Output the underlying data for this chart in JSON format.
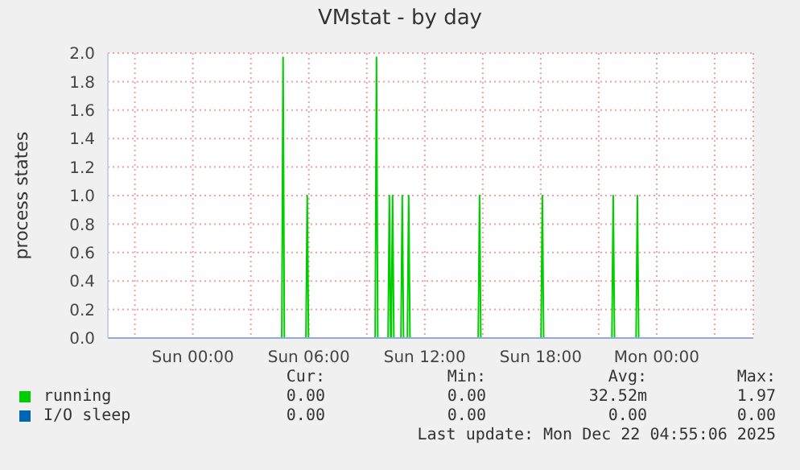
{
  "chart_data": {
    "type": "line",
    "title": "VMstat - by day",
    "ylabel": "process states",
    "xlim": [
      "2025-12-20T19:36",
      "2025-12-22T05:00"
    ],
    "xticks": [
      {
        "value": "2025-12-20T21:00",
        "label": null
      },
      {
        "value": "2025-12-21T00:00",
        "label": "Sun 00:00"
      },
      {
        "value": "2025-12-21T03:00",
        "label": null
      },
      {
        "value": "2025-12-21T06:00",
        "label": "Sun 06:00"
      },
      {
        "value": "2025-12-21T09:00",
        "label": null
      },
      {
        "value": "2025-12-21T12:00",
        "label": "Sun 12:00"
      },
      {
        "value": "2025-12-21T15:00",
        "label": null
      },
      {
        "value": "2025-12-21T18:00",
        "label": "Sun 18:00"
      },
      {
        "value": "2025-12-21T21:00",
        "label": null
      },
      {
        "value": "2025-12-22T00:00",
        "label": "Mon 00:00"
      },
      {
        "value": "2025-12-22T03:00",
        "label": null
      }
    ],
    "ylim": [
      0,
      2
    ],
    "yticks": [
      {
        "value": 0,
        "label": "0.0"
      },
      {
        "value": 0.2,
        "label": "0.2"
      },
      {
        "value": 0.4,
        "label": "0.4"
      },
      {
        "value": 0.6,
        "label": "0.6"
      },
      {
        "value": 0.8,
        "label": "0.8"
      },
      {
        "value": 1,
        "label": "1.0"
      },
      {
        "value": 1.2,
        "label": "1.2"
      },
      {
        "value": 1.4,
        "label": "1.4"
      },
      {
        "value": 1.6,
        "label": "1.6"
      },
      {
        "value": 1.8,
        "label": "1.8"
      },
      {
        "value": 2,
        "label": "2.0"
      }
    ],
    "grid": true,
    "legend": "bottom",
    "marker": "none",
    "line_style": "solid",
    "series": [
      {
        "name": "running",
        "color": "#00cc00",
        "x": [
          "2025-12-20T19:36",
          "2025-12-21T04:36",
          "2025-12-21T04:40",
          "2025-12-21T04:44",
          "2025-12-21T05:51",
          "2025-12-21T05:55",
          "2025-12-21T05:59",
          "2025-12-21T09:26",
          "2025-12-21T09:30",
          "2025-12-21T09:34",
          "2025-12-21T10:06",
          "2025-12-21T10:10",
          "2025-12-21T10:14",
          "2025-12-21T10:16",
          "2025-12-21T10:20",
          "2025-12-21T10:24",
          "2025-12-21T10:46",
          "2025-12-21T10:50",
          "2025-12-21T10:54",
          "2025-12-21T11:06",
          "2025-12-21T11:10",
          "2025-12-21T11:14",
          "2025-12-21T14:46",
          "2025-12-21T14:50",
          "2025-12-21T14:54",
          "2025-12-21T18:01",
          "2025-12-21T18:05",
          "2025-12-21T18:09",
          "2025-12-21T21:41",
          "2025-12-21T21:45",
          "2025-12-21T21:49",
          "2025-12-21T22:56",
          "2025-12-21T23:00",
          "2025-12-21T23:04",
          "2025-12-22T05:00"
        ],
        "values": [
          0,
          0,
          1.97,
          0,
          0,
          1,
          0,
          0,
          1.97,
          0,
          0,
          1,
          0,
          0,
          1,
          0,
          0,
          1,
          0,
          0,
          1,
          0,
          0,
          1,
          0,
          0,
          1,
          0,
          0,
          1,
          0,
          0,
          1,
          0,
          0
        ]
      },
      {
        "name": "I/O sleep",
        "color": "#0066b3",
        "x": [
          "2025-12-20T19:36",
          "2025-12-22T05:00"
        ],
        "values": [
          0,
          0
        ]
      }
    ],
    "annotations": [
      "Cur:",
      "Min:",
      "Avg:",
      "Max:",
      "0.00",
      "0.00",
      "32.52m",
      "1.97",
      "0.00",
      "0.00",
      "0.00",
      "0.00",
      "Last update: Mon Dec 22 04:55:06 2025"
    ]
  }
}
